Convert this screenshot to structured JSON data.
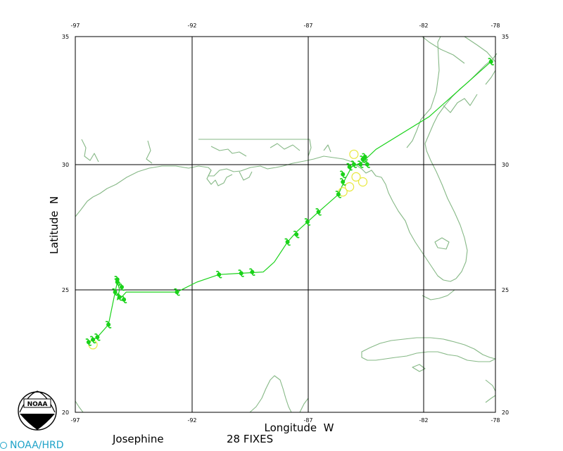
{
  "map": {
    "x_axis_label": "Longitude  W",
    "y_axis_label": "Latitude  N",
    "lon_ticks": [
      "-97",
      "-92",
      "-87",
      "-82",
      "-78"
    ],
    "lat_ticks": [
      "35",
      "30",
      "25",
      "20"
    ],
    "lon_range": [
      -97,
      -78
    ],
    "lat_range": [
      20,
      35
    ],
    "grid_lines": {
      "lon": [
        -92,
        -87,
        -82
      ],
      "lat": [
        25,
        30
      ]
    }
  },
  "footer": {
    "storm_name": "Josephine",
    "fix_count_label": "28 FIXES",
    "credit": "NOAA/HRD",
    "logo_text": "NOAA"
  },
  "colors": {
    "coast": "#86b886",
    "track": "#19d219",
    "fix_marker": "#19d219",
    "aux_marker": "#e8e83c",
    "grid": "#000000",
    "credit": "#1fa3c9"
  },
  "chart_data": {
    "type": "scatter",
    "title": "",
    "xlabel": "Longitude  W",
    "ylabel": "Latitude  N",
    "xlim": [
      -97,
      -78
    ],
    "ylim": [
      20,
      35
    ],
    "series": [
      {
        "kind": "track",
        "points": [
          [
            -96.4,
            22.8
          ],
          [
            -96.2,
            22.9
          ],
          [
            -96.0,
            23.0
          ],
          [
            -95.5,
            23.5
          ],
          [
            -95.2,
            24.8
          ],
          [
            -95.1,
            25.2
          ],
          [
            -95.0,
            24.9
          ],
          [
            -95.1,
            24.5
          ],
          [
            -94.9,
            24.6
          ],
          [
            -94.7,
            24.8
          ],
          [
            -93.5,
            24.8
          ],
          [
            -92.4,
            24.8
          ],
          [
            -91.5,
            25.2
          ],
          [
            -90.5,
            25.5
          ],
          [
            -89.5,
            25.55
          ],
          [
            -88.5,
            25.6
          ],
          [
            -88.0,
            26.0
          ],
          [
            -87.4,
            26.8
          ],
          [
            -87.0,
            27.2
          ],
          [
            -86.5,
            27.6
          ],
          [
            -86.0,
            28.0
          ],
          [
            -85.1,
            28.7
          ],
          [
            -84.8,
            29.3
          ],
          [
            -84.5,
            29.8
          ],
          [
            -84.0,
            30.0
          ],
          [
            -83.4,
            30.5
          ],
          [
            -81.0,
            31.8
          ],
          [
            -78.2,
            34.0
          ]
        ]
      },
      {
        "kind": "fixes",
        "points": [
          [
            -96.4,
            22.8
          ],
          [
            -96.2,
            22.9
          ],
          [
            -96.0,
            23.0
          ],
          [
            -95.5,
            23.5
          ],
          [
            -95.2,
            24.8
          ],
          [
            -95.1,
            25.2
          ],
          [
            -94.9,
            25.0
          ],
          [
            -95.0,
            24.6
          ],
          [
            -94.8,
            24.5
          ],
          [
            -92.4,
            24.8
          ],
          [
            -90.5,
            25.5
          ],
          [
            -89.5,
            25.55
          ],
          [
            -89.0,
            25.6
          ],
          [
            -87.4,
            26.8
          ],
          [
            -87.0,
            27.1
          ],
          [
            -86.5,
            27.6
          ],
          [
            -86.0,
            28.0
          ],
          [
            -85.1,
            28.7
          ],
          [
            -84.9,
            29.2
          ],
          [
            -84.9,
            29.5
          ],
          [
            -84.6,
            29.8
          ],
          [
            -84.4,
            29.9
          ],
          [
            -84.1,
            29.9
          ],
          [
            -84.0,
            30.1
          ],
          [
            -83.8,
            29.9
          ],
          [
            -83.9,
            30.2
          ],
          [
            -78.2,
            34.0
          ],
          [
            -95.1,
            25.3
          ]
        ]
      },
      {
        "kind": "aux",
        "points": [
          [
            -96.2,
            22.7
          ],
          [
            -84.4,
            30.3
          ],
          [
            -84.3,
            29.4
          ],
          [
            -84.0,
            29.2
          ],
          [
            -84.9,
            28.8
          ],
          [
            -84.6,
            29.0
          ]
        ]
      }
    ]
  }
}
